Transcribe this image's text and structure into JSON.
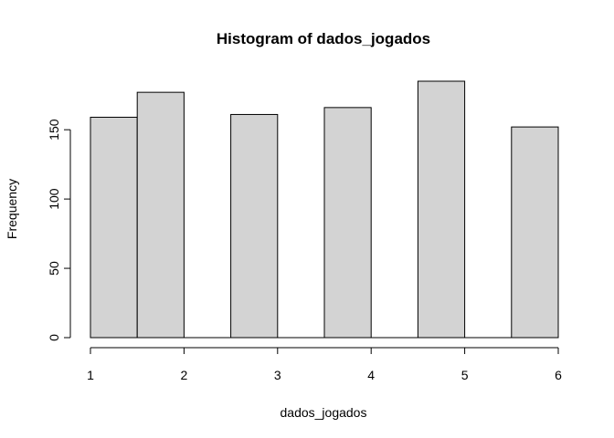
{
  "chart_data": {
    "type": "bar",
    "title": "Histogram of dados_jogados",
    "xlabel": "dados_jogados",
    "ylabel": "Frequency",
    "bins": [
      {
        "start": 1.0,
        "end": 1.5,
        "value": 159
      },
      {
        "start": 1.5,
        "end": 2.0,
        "value": 177
      },
      {
        "start": 2.0,
        "end": 2.5,
        "value": 0
      },
      {
        "start": 2.5,
        "end": 3.0,
        "value": 161
      },
      {
        "start": 3.0,
        "end": 3.5,
        "value": 0
      },
      {
        "start": 3.5,
        "end": 4.0,
        "value": 166
      },
      {
        "start": 4.0,
        "end": 4.5,
        "value": 0
      },
      {
        "start": 4.5,
        "end": 5.0,
        "value": 185
      },
      {
        "start": 5.0,
        "end": 5.5,
        "value": 0
      },
      {
        "start": 5.5,
        "end": 6.0,
        "value": 152
      }
    ],
    "xlim": [
      1,
      6
    ],
    "ylim": [
      0,
      185
    ],
    "xticks": [
      {
        "value": 1,
        "label": "1"
      },
      {
        "value": 2,
        "label": "2"
      },
      {
        "value": 3,
        "label": "3"
      },
      {
        "value": 4,
        "label": "4"
      },
      {
        "value": 5,
        "label": "5"
      },
      {
        "value": 6,
        "label": "6"
      }
    ],
    "yticks": [
      {
        "value": 0,
        "label": "0"
      },
      {
        "value": 50,
        "label": "50"
      },
      {
        "value": 100,
        "label": "100"
      },
      {
        "value": 150,
        "label": "150"
      }
    ],
    "grid": false,
    "bar_color": "#d3d3d3",
    "edge_color": "#000000"
  }
}
